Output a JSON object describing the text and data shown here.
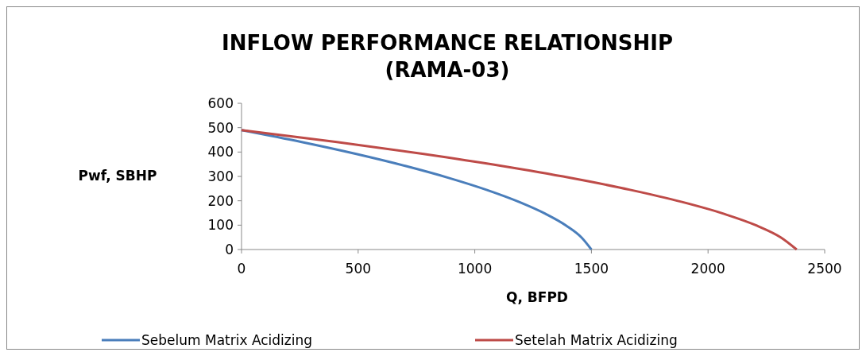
{
  "chart_data": {
    "type": "line",
    "title": "INFLOW PERFORMANCE RELATIONSHIP\n(RAMA-03)",
    "xlabel": "Q, BFPD",
    "ylabel": "Pwf, SBHP",
    "xlim": [
      0,
      2500
    ],
    "xticks": [
      0,
      500,
      1000,
      1500,
      2000,
      2500
    ],
    "ylim": [
      0,
      600
    ],
    "yticks": [
      0,
      100,
      200,
      300,
      400,
      500,
      600
    ],
    "legend": "bottom",
    "grid": false,
    "series": [
      {
        "name": "Sebelum Matrix Acidizing",
        "color": "#4a7ebb",
        "x": [
          0,
          258,
          492,
          702,
          888,
          1050,
          1188,
          1302,
          1392,
          1458,
          1500
        ],
        "values": [
          490,
          441,
          392,
          343,
          294,
          245,
          196,
          147,
          98,
          49,
          0
        ]
      },
      {
        "name": "Setelah Matrix Acidizing",
        "color": "#be4b48",
        "x": [
          0,
          409,
          781,
          1114,
          1409,
          1666,
          1885,
          2066,
          2209,
          2313,
          2380
        ],
        "values": [
          490,
          441,
          392,
          343,
          294,
          245,
          196,
          147,
          98,
          49,
          0
        ]
      }
    ]
  }
}
